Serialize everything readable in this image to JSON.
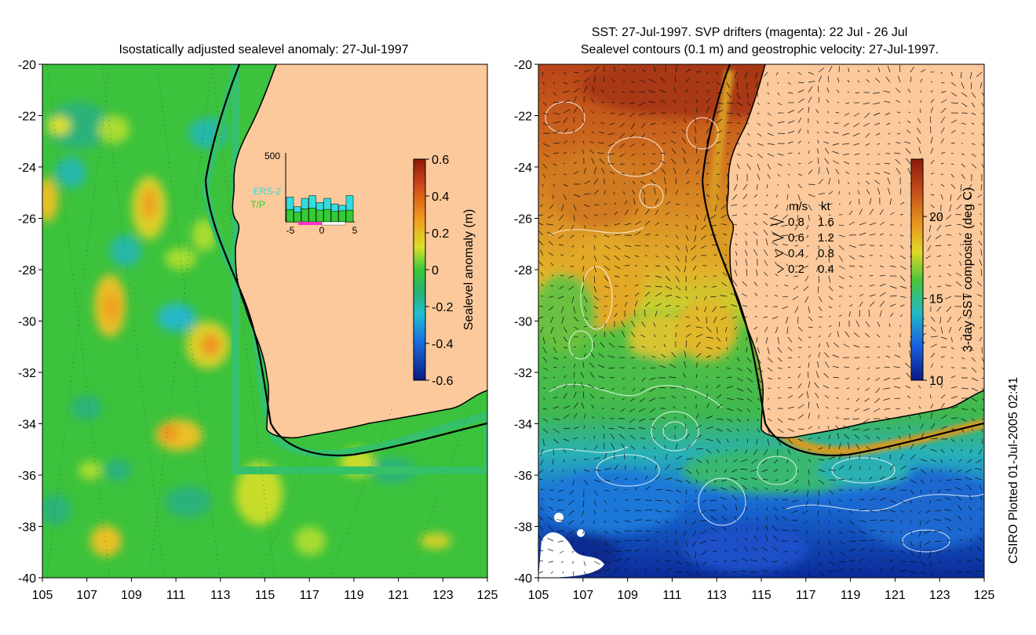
{
  "left_panel": {
    "title": "Isostatically adjusted sealevel anomaly: 27-Jul-1997",
    "x_ticks": [
      "105",
      "107",
      "109",
      "111",
      "113",
      "115",
      "117",
      "119",
      "121",
      "123",
      "125"
    ],
    "y_ticks": [
      "-20",
      "-22",
      "-24",
      "-26",
      "-28",
      "-30",
      "-32",
      "-34",
      "-36",
      "-38",
      "-40"
    ],
    "xlim": [
      105,
      125
    ],
    "ylim": [
      -40,
      -20
    ],
    "colorbar": {
      "label": "Sealevel anomaly (m)",
      "ticks": [
        "0.6",
        "0.4",
        "0.2",
        "0",
        "-0.2",
        "-0.4",
        "-0.6"
      ],
      "range": [
        -0.6,
        0.6
      ]
    },
    "inset": {
      "y_max_label": "500",
      "x_ticks": [
        "-5",
        "0",
        "5"
      ],
      "legend": [
        {
          "label": "ERS-2",
          "color": "#33dddd"
        },
        {
          "label": "T/P",
          "color": "#33cc33"
        }
      ],
      "bars_ers2": [
        180,
        110,
        170,
        190,
        140,
        170,
        130,
        120,
        190
      ],
      "bars_tp": [
        90,
        70,
        95,
        100,
        85,
        90,
        75,
        80,
        85
      ],
      "ylim": [
        0,
        500
      ]
    }
  },
  "right_panel": {
    "title_line1": "SST: 27-Jul-1997. SVP drifters (magenta): 22 Jul - 26 Jul",
    "title_line2": "Sealevel contours (0.1 m) and geostrophic velocity: 27-Jul-1997.",
    "x_ticks": [
      "105",
      "107",
      "109",
      "111",
      "113",
      "115",
      "117",
      "119",
      "121",
      "123",
      "125"
    ],
    "y_ticks": [
      "-20",
      "-22",
      "-24",
      "-26",
      "-28",
      "-30",
      "-32",
      "-34",
      "-36",
      "-38",
      "-40"
    ],
    "xlim": [
      105,
      125
    ],
    "ylim": [
      -40,
      -20
    ],
    "colorbar": {
      "label": "3-day SST composite (deg C)",
      "ticks": [
        "20",
        "15",
        "10"
      ],
      "range": [
        10,
        23.5
      ]
    },
    "velocity_legend": {
      "header_ms": "m/s",
      "header_kt": "kt",
      "rows": [
        {
          "ms": "0.8",
          "kt": "1.6"
        },
        {
          "ms": "0.6",
          "kt": "1.2"
        },
        {
          "ms": "0.4",
          "kt": "0.8"
        },
        {
          "ms": "0.2",
          "kt": "0.4"
        }
      ]
    }
  },
  "credit": "CSIRO Plotted 01-Jul-2005 02:41",
  "colors": {
    "land": "#fbc99b",
    "coast": "#000000",
    "shelf_green": "#35c06a"
  }
}
